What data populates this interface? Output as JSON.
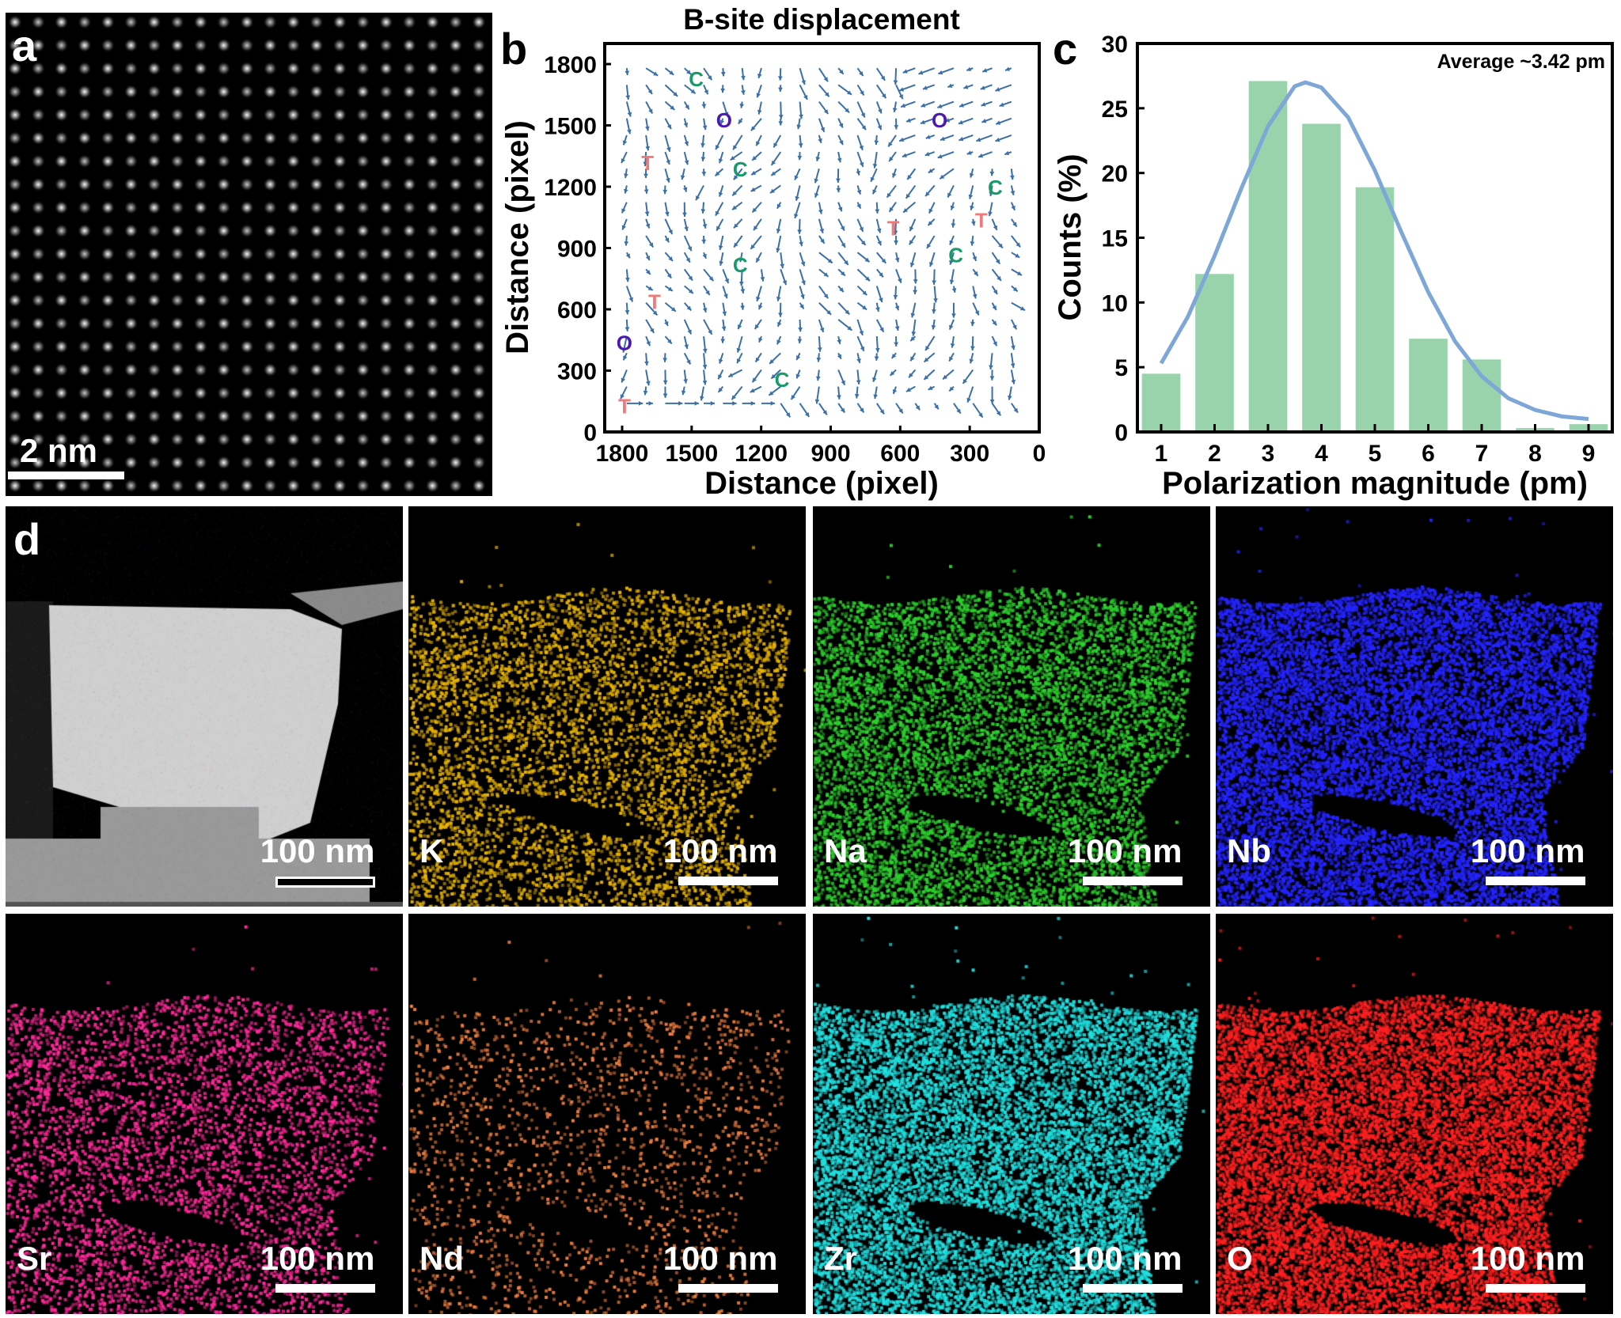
{
  "panel_a": {
    "label": "a",
    "scale_bar": "2 nm"
  },
  "panel_b": {
    "label": "b",
    "title": "B-site displacement",
    "xlabel": "Distance (pixel)",
    "ylabel": "Distance (pixel)",
    "x_ticks": [
      "1800",
      "1500",
      "1200",
      "900",
      "600",
      "300",
      "0"
    ],
    "y_ticks": [
      "0",
      "300",
      "600",
      "900",
      "1200",
      "1500",
      "1800"
    ],
    "arrow_color": "#3a6fa8",
    "annotations": [
      {
        "text": "C",
        "x": 1480,
        "y": 1730,
        "color": "#1a9a6a"
      },
      {
        "text": "O",
        "x": 1360,
        "y": 1530,
        "color": "#4a1ab0"
      },
      {
        "text": "O",
        "x": 430,
        "y": 1530,
        "color": "#4a1ab0"
      },
      {
        "text": "T",
        "x": 1690,
        "y": 1320,
        "color": "#f07a7a"
      },
      {
        "text": "C",
        "x": 1290,
        "y": 1290,
        "color": "#1a9a6a"
      },
      {
        "text": "C",
        "x": 190,
        "y": 1200,
        "color": "#1a9a6a"
      },
      {
        "text": "T",
        "x": 630,
        "y": 1000,
        "color": "#f07a7a"
      },
      {
        "text": "T",
        "x": 250,
        "y": 1040,
        "color": "#f07a7a"
      },
      {
        "text": "C",
        "x": 1290,
        "y": 820,
        "color": "#1a9a6a"
      },
      {
        "text": "C",
        "x": 360,
        "y": 870,
        "color": "#1a9a6a"
      },
      {
        "text": "T",
        "x": 1660,
        "y": 640,
        "color": "#f07a7a"
      },
      {
        "text": "O",
        "x": 1790,
        "y": 440,
        "color": "#4a1ab0"
      },
      {
        "text": "C",
        "x": 1110,
        "y": 260,
        "color": "#1a9a6a"
      },
      {
        "text": "T",
        "x": 1790,
        "y": 130,
        "color": "#f07a7a"
      }
    ]
  },
  "chart_data": {
    "type": "bar",
    "label": "c",
    "categories": [
      "1",
      "2",
      "3",
      "4",
      "5",
      "6",
      "7",
      "8",
      "9"
    ],
    "values": [
      4.5,
      12.2,
      27.1,
      23.8,
      18.9,
      7.2,
      5.6,
      0.3,
      0.6
    ],
    "xlabel": "Polarization magnitude (pm)",
    "ylabel": "Counts (%)",
    "ylim": [
      0,
      30
    ],
    "y_ticks": [
      0,
      5,
      10,
      15,
      20,
      25,
      30
    ],
    "annotation": "Average ~3.42 pm",
    "bar_color": "#98d3ab",
    "fit_color": "#7ea6d6",
    "fit_curve": {
      "x": [
        1,
        1.5,
        2,
        2.5,
        3,
        3.5,
        3.7,
        4,
        4.5,
        5,
        5.5,
        6,
        6.5,
        7,
        7.5,
        8,
        8.5,
        9
      ],
      "y": [
        5.3,
        8.9,
        13.6,
        18.8,
        23.6,
        26.7,
        27.0,
        26.6,
        24.3,
        20.2,
        15.4,
        10.8,
        7.0,
        4.3,
        2.6,
        1.7,
        1.2,
        1.0
      ]
    },
    "grid": false
  },
  "panel_d": {
    "label": "d",
    "tiles": [
      {
        "element": "",
        "scale_bar": "100 nm",
        "kind": "haadf"
      },
      {
        "element": "K",
        "scale_bar": "100 nm",
        "color": "#e8b400",
        "density": 0.55
      },
      {
        "element": "Na",
        "scale_bar": "100 nm",
        "color": "#2ed12e",
        "density": 0.8
      },
      {
        "element": "Nb",
        "scale_bar": "100 nm",
        "color": "#2424ff",
        "density": 1.3
      },
      {
        "element": "Sr",
        "scale_bar": "100 nm",
        "color": "#ff2a9a",
        "density": 0.5
      },
      {
        "element": "Nd",
        "scale_bar": "100 nm",
        "color": "#f08040",
        "density": 0.18
      },
      {
        "element": "Zr",
        "scale_bar": "100 nm",
        "color": "#22e0e0",
        "density": 1.1
      },
      {
        "element": "O",
        "scale_bar": "100 nm",
        "color": "#ff2020",
        "density": 1.3
      }
    ]
  }
}
